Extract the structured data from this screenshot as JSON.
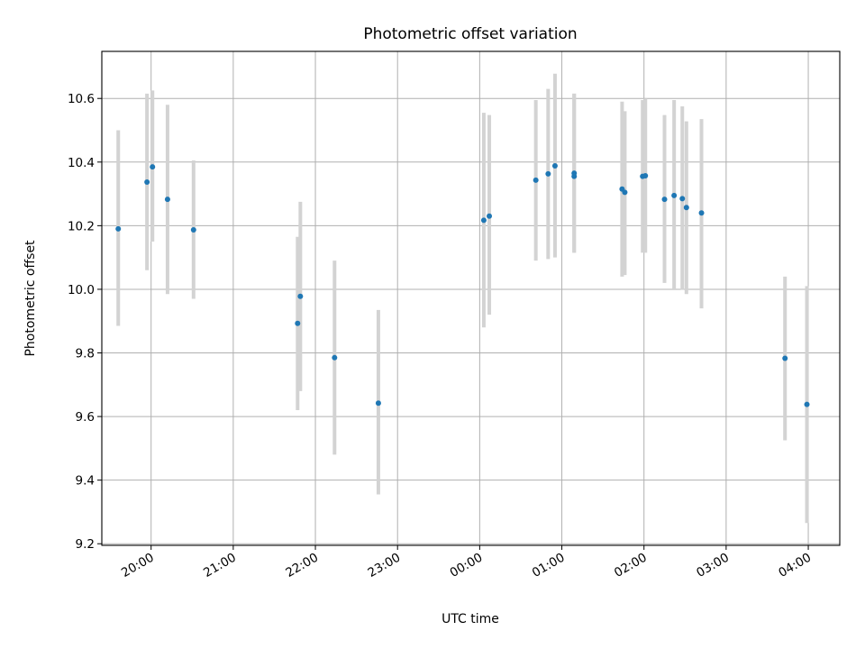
{
  "chart_data": {
    "type": "scatter",
    "title": "Photometric offset variation",
    "xlabel": "UTC time",
    "ylabel": "Photometric offset",
    "ylim": [
      9.195,
      10.748
    ],
    "xlim": [
      "19:24",
      "04:23"
    ],
    "y_ticks": [
      "9.2",
      "9.4",
      "9.6",
      "9.8",
      "10.0",
      "10.2",
      "10.4",
      "10.6"
    ],
    "x_ticks": [
      "20:00",
      "21:00",
      "22:00",
      "23:00",
      "00:00",
      "01:00",
      "02:00",
      "03:00",
      "04:00"
    ],
    "grid": true,
    "marker_color": "#1f77b4",
    "errorbar_color": "#d3d3d3",
    "points": [
      {
        "x": "19:36",
        "y": 10.19,
        "ylow": 9.885,
        "yhigh": 10.5
      },
      {
        "x": "19:57",
        "y": 10.337,
        "ylow": 10.06,
        "yhigh": 10.615
      },
      {
        "x": "20:01",
        "y": 10.385,
        "ylow": 10.15,
        "yhigh": 10.625
      },
      {
        "x": "20:12",
        "y": 10.283,
        "ylow": 9.985,
        "yhigh": 10.58
      },
      {
        "x": "20:31",
        "y": 10.187,
        "ylow": 9.97,
        "yhigh": 10.405
      },
      {
        "x": "21:47",
        "y": 9.893,
        "ylow": 9.62,
        "yhigh": 10.165
      },
      {
        "x": "21:49",
        "y": 9.978,
        "ylow": 9.68,
        "yhigh": 10.275
      },
      {
        "x": "22:14",
        "y": 9.785,
        "ylow": 9.48,
        "yhigh": 10.09
      },
      {
        "x": "22:46",
        "y": 9.642,
        "ylow": 9.355,
        "yhigh": 9.935
      },
      {
        "x": "00:03",
        "y": 10.217,
        "ylow": 9.88,
        "yhigh": 10.555
      },
      {
        "x": "00:07",
        "y": 10.23,
        "ylow": 9.92,
        "yhigh": 10.548
      },
      {
        "x": "00:41",
        "y": 10.343,
        "ylow": 10.09,
        "yhigh": 10.595
      },
      {
        "x": "00:50",
        "y": 10.363,
        "ylow": 10.095,
        "yhigh": 10.63
      },
      {
        "x": "00:55",
        "y": 10.388,
        "ylow": 10.1,
        "yhigh": 10.678
      },
      {
        "x": "01:09",
        "y": 10.355,
        "ylow": 10.115,
        "yhigh": 10.615
      },
      {
        "x": "01:09",
        "y": 10.365,
        "ylow": 10.115,
        "yhigh": 10.615
      },
      {
        "x": "01:44",
        "y": 10.315,
        "ylow": 10.04,
        "yhigh": 10.59
      },
      {
        "x": "01:46",
        "y": 10.305,
        "ylow": 10.045,
        "yhigh": 10.56
      },
      {
        "x": "01:59",
        "y": 10.355,
        "ylow": 10.115,
        "yhigh": 10.595
      },
      {
        "x": "02:01",
        "y": 10.357,
        "ylow": 10.115,
        "yhigh": 10.6
      },
      {
        "x": "02:15",
        "y": 10.283,
        "ylow": 10.02,
        "yhigh": 10.548
      },
      {
        "x": "02:22",
        "y": 10.295,
        "ylow": 10.0,
        "yhigh": 10.595
      },
      {
        "x": "02:28",
        "y": 10.285,
        "ylow": 9.998,
        "yhigh": 10.575
      },
      {
        "x": "02:31",
        "y": 10.257,
        "ylow": 9.985,
        "yhigh": 10.528
      },
      {
        "x": "02:42",
        "y": 10.24,
        "ylow": 9.94,
        "yhigh": 10.535
      },
      {
        "x": "03:43",
        "y": 9.783,
        "ylow": 9.525,
        "yhigh": 10.04
      },
      {
        "x": "03:59",
        "y": 9.638,
        "ylow": 9.265,
        "yhigh": 10.01
      }
    ]
  }
}
